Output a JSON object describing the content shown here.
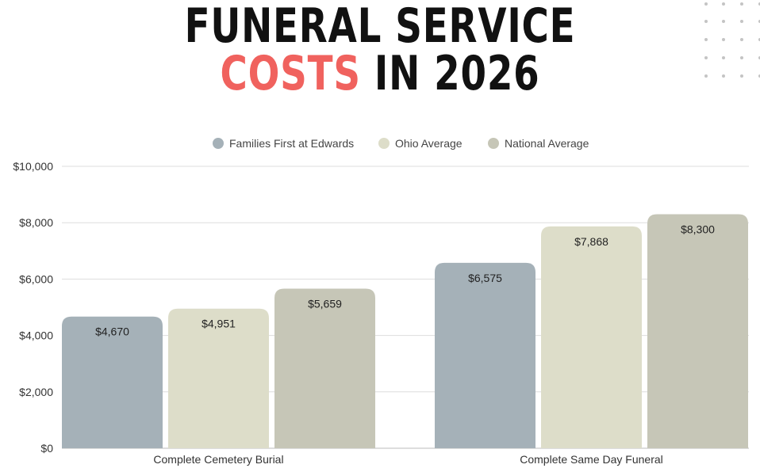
{
  "title": {
    "line1": "Funeral Service",
    "line2_accent": "Costs",
    "line2_rest": " in 2026"
  },
  "colors": {
    "accent": "#f0625e",
    "families_first": "#a5b1b8",
    "ohio": "#ddddc9",
    "national": "#c6c6b7",
    "gridline": "#dddddd",
    "dots": "#c4c4c4"
  },
  "chart_data": {
    "type": "bar",
    "title": "",
    "xlabel": "",
    "ylabel": "",
    "categories": [
      "Complete Cemetery Burial",
      "Complete Same Day Funeral"
    ],
    "series": [
      {
        "name": "Families First at Edwards",
        "values": [
          4670,
          6575
        ],
        "labels": [
          "$4,670",
          "$6,575"
        ],
        "color": "#a5b1b8"
      },
      {
        "name": "Ohio Average",
        "values": [
          4951,
          7868
        ],
        "labels": [
          "$4,951",
          "$7,868"
        ],
        "color": "#ddddc9"
      },
      {
        "name": "National Average",
        "values": [
          5659,
          8300
        ],
        "labels": [
          "$5,659",
          "$8,300"
        ],
        "color": "#c6c6b7"
      }
    ],
    "ylim": [
      0,
      10000
    ],
    "yticks": [
      0,
      2000,
      4000,
      6000,
      8000,
      10000
    ],
    "ytick_labels": [
      "$0",
      "$2,000",
      "$4,000",
      "$6,000",
      "$8,000",
      "$10,000"
    ],
    "grid": true,
    "legend_position": "top-center"
  }
}
